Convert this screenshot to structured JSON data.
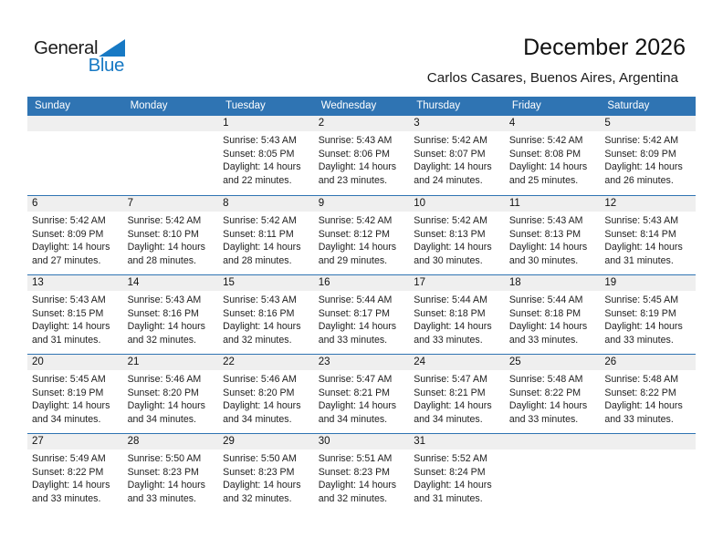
{
  "logo": {
    "text_top": "General",
    "text_bottom": "Blue",
    "triangle_icon": "blue-right-triangle"
  },
  "header": {
    "title": "December 2026",
    "subtitle": "Carlos Casares, Buenos Aires, Argentina"
  },
  "colors": {
    "header_bar": "#2F74B3",
    "week_divider": "#2F74B3",
    "date_band": "#EFEFEF",
    "logo_blue": "#1779C4",
    "header_text": "#FFFFFF",
    "body_text": "#212121"
  },
  "calendar": {
    "weekdays": [
      "Sunday",
      "Monday",
      "Tuesday",
      "Wednesday",
      "Thursday",
      "Friday",
      "Saturday"
    ],
    "weeks": [
      [
        null,
        null,
        {
          "day": "1",
          "sunrise": "Sunrise: 5:43 AM",
          "sunset": "Sunset: 8:05 PM",
          "daylight": "Daylight: 14 hours and 22 minutes."
        },
        {
          "day": "2",
          "sunrise": "Sunrise: 5:43 AM",
          "sunset": "Sunset: 8:06 PM",
          "daylight": "Daylight: 14 hours and 23 minutes."
        },
        {
          "day": "3",
          "sunrise": "Sunrise: 5:42 AM",
          "sunset": "Sunset: 8:07 PM",
          "daylight": "Daylight: 14 hours and 24 minutes."
        },
        {
          "day": "4",
          "sunrise": "Sunrise: 5:42 AM",
          "sunset": "Sunset: 8:08 PM",
          "daylight": "Daylight: 14 hours and 25 minutes."
        },
        {
          "day": "5",
          "sunrise": "Sunrise: 5:42 AM",
          "sunset": "Sunset: 8:09 PM",
          "daylight": "Daylight: 14 hours and 26 minutes."
        }
      ],
      [
        {
          "day": "6",
          "sunrise": "Sunrise: 5:42 AM",
          "sunset": "Sunset: 8:09 PM",
          "daylight": "Daylight: 14 hours and 27 minutes."
        },
        {
          "day": "7",
          "sunrise": "Sunrise: 5:42 AM",
          "sunset": "Sunset: 8:10 PM",
          "daylight": "Daylight: 14 hours and 28 minutes."
        },
        {
          "day": "8",
          "sunrise": "Sunrise: 5:42 AM",
          "sunset": "Sunset: 8:11 PM",
          "daylight": "Daylight: 14 hours and 28 minutes."
        },
        {
          "day": "9",
          "sunrise": "Sunrise: 5:42 AM",
          "sunset": "Sunset: 8:12 PM",
          "daylight": "Daylight: 14 hours and 29 minutes."
        },
        {
          "day": "10",
          "sunrise": "Sunrise: 5:42 AM",
          "sunset": "Sunset: 8:13 PM",
          "daylight": "Daylight: 14 hours and 30 minutes."
        },
        {
          "day": "11",
          "sunrise": "Sunrise: 5:43 AM",
          "sunset": "Sunset: 8:13 PM",
          "daylight": "Daylight: 14 hours and 30 minutes."
        },
        {
          "day": "12",
          "sunrise": "Sunrise: 5:43 AM",
          "sunset": "Sunset: 8:14 PM",
          "daylight": "Daylight: 14 hours and 31 minutes."
        }
      ],
      [
        {
          "day": "13",
          "sunrise": "Sunrise: 5:43 AM",
          "sunset": "Sunset: 8:15 PM",
          "daylight": "Daylight: 14 hours and 31 minutes."
        },
        {
          "day": "14",
          "sunrise": "Sunrise: 5:43 AM",
          "sunset": "Sunset: 8:16 PM",
          "daylight": "Daylight: 14 hours and 32 minutes."
        },
        {
          "day": "15",
          "sunrise": "Sunrise: 5:43 AM",
          "sunset": "Sunset: 8:16 PM",
          "daylight": "Daylight: 14 hours and 32 minutes."
        },
        {
          "day": "16",
          "sunrise": "Sunrise: 5:44 AM",
          "sunset": "Sunset: 8:17 PM",
          "daylight": "Daylight: 14 hours and 33 minutes."
        },
        {
          "day": "17",
          "sunrise": "Sunrise: 5:44 AM",
          "sunset": "Sunset: 8:18 PM",
          "daylight": "Daylight: 14 hours and 33 minutes."
        },
        {
          "day": "18",
          "sunrise": "Sunrise: 5:44 AM",
          "sunset": "Sunset: 8:18 PM",
          "daylight": "Daylight: 14 hours and 33 minutes."
        },
        {
          "day": "19",
          "sunrise": "Sunrise: 5:45 AM",
          "sunset": "Sunset: 8:19 PM",
          "daylight": "Daylight: 14 hours and 33 minutes."
        }
      ],
      [
        {
          "day": "20",
          "sunrise": "Sunrise: 5:45 AM",
          "sunset": "Sunset: 8:19 PM",
          "daylight": "Daylight: 14 hours and 34 minutes."
        },
        {
          "day": "21",
          "sunrise": "Sunrise: 5:46 AM",
          "sunset": "Sunset: 8:20 PM",
          "daylight": "Daylight: 14 hours and 34 minutes."
        },
        {
          "day": "22",
          "sunrise": "Sunrise: 5:46 AM",
          "sunset": "Sunset: 8:20 PM",
          "daylight": "Daylight: 14 hours and 34 minutes."
        },
        {
          "day": "23",
          "sunrise": "Sunrise: 5:47 AM",
          "sunset": "Sunset: 8:21 PM",
          "daylight": "Daylight: 14 hours and 34 minutes."
        },
        {
          "day": "24",
          "sunrise": "Sunrise: 5:47 AM",
          "sunset": "Sunset: 8:21 PM",
          "daylight": "Daylight: 14 hours and 34 minutes."
        },
        {
          "day": "25",
          "sunrise": "Sunrise: 5:48 AM",
          "sunset": "Sunset: 8:22 PM",
          "daylight": "Daylight: 14 hours and 33 minutes."
        },
        {
          "day": "26",
          "sunrise": "Sunrise: 5:48 AM",
          "sunset": "Sunset: 8:22 PM",
          "daylight": "Daylight: 14 hours and 33 minutes."
        }
      ],
      [
        {
          "day": "27",
          "sunrise": "Sunrise: 5:49 AM",
          "sunset": "Sunset: 8:22 PM",
          "daylight": "Daylight: 14 hours and 33 minutes."
        },
        {
          "day": "28",
          "sunrise": "Sunrise: 5:50 AM",
          "sunset": "Sunset: 8:23 PM",
          "daylight": "Daylight: 14 hours and 33 minutes."
        },
        {
          "day": "29",
          "sunrise": "Sunrise: 5:50 AM",
          "sunset": "Sunset: 8:23 PM",
          "daylight": "Daylight: 14 hours and 32 minutes."
        },
        {
          "day": "30",
          "sunrise": "Sunrise: 5:51 AM",
          "sunset": "Sunset: 8:23 PM",
          "daylight": "Daylight: 14 hours and 32 minutes."
        },
        {
          "day": "31",
          "sunrise": "Sunrise: 5:52 AM",
          "sunset": "Sunset: 8:24 PM",
          "daylight": "Daylight: 14 hours and 31 minutes."
        },
        null,
        null
      ]
    ]
  }
}
